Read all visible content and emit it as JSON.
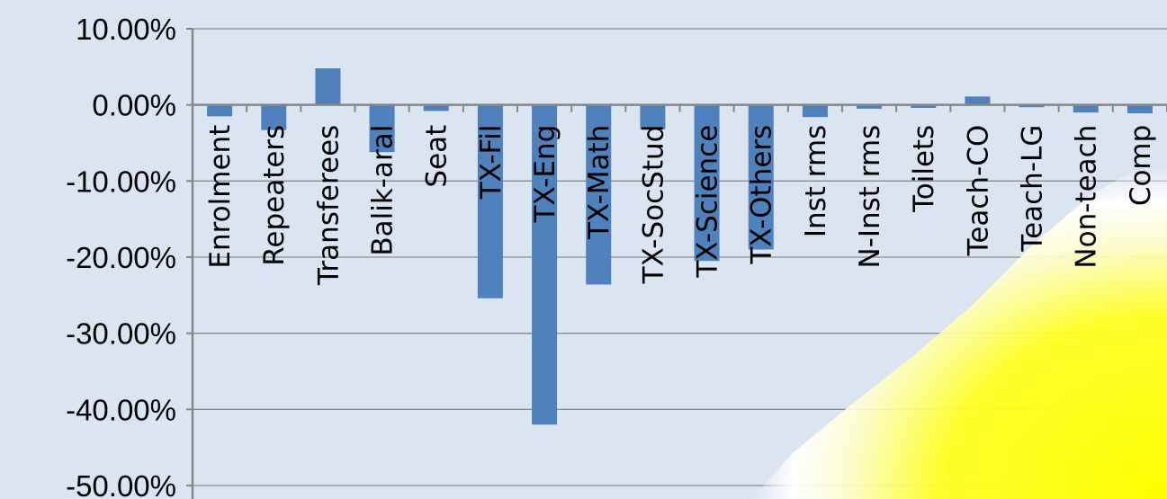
{
  "chart_data": {
    "type": "bar",
    "categories": [
      "Enrolment",
      "Repeaters",
      "Transferees",
      "Balik-aral",
      "Seat",
      "TX-Fil",
      "TX-Eng",
      "TX-Math",
      "TX-SocStud",
      "TX-Science",
      "TX-Others",
      "Inst rms",
      "N-Inst rms",
      "Toilets",
      "Teach-CO",
      "Teach-LG",
      "Non-teach",
      "Comp"
    ],
    "values": [
      -1.5,
      -3.3,
      4.8,
      -6.2,
      -0.8,
      -25.4,
      -42.0,
      -23.6,
      -3.2,
      -20.5,
      -19.0,
      -1.6,
      -0.5,
      -0.4,
      1.1,
      -0.3,
      -1.0,
      -1.1
    ],
    "y_ticks": [
      "10.00%",
      "0.00%",
      "-10.00%",
      "-20.00%",
      "-30.00%",
      "-40.00%",
      "-50.00%"
    ],
    "ylim": [
      -50,
      10
    ],
    "grid": true,
    "legend": "none",
    "colors": {
      "bar": "#4f81bd",
      "background": "#dbe5f1",
      "grid": "#8c8c8c",
      "axis": "#868686",
      "overlay": "#ffff00"
    }
  }
}
